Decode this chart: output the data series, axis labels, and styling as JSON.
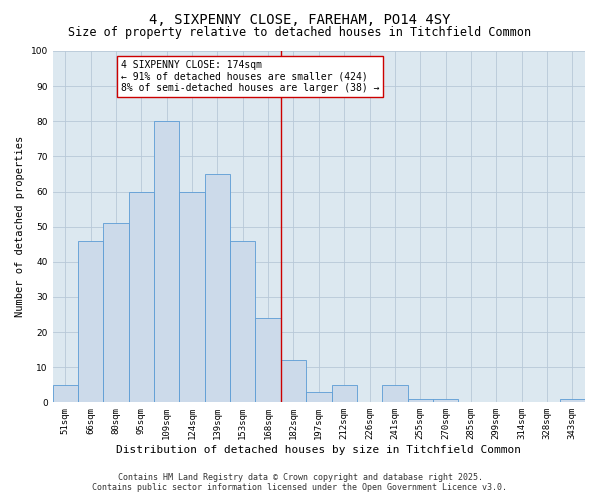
{
  "title": "4, SIXPENNY CLOSE, FAREHAM, PO14 4SY",
  "subtitle": "Size of property relative to detached houses in Titchfield Common",
  "xlabel": "Distribution of detached houses by size in Titchfield Common",
  "ylabel": "Number of detached properties",
  "bar_labels": [
    "51sqm",
    "66sqm",
    "80sqm",
    "95sqm",
    "109sqm",
    "124sqm",
    "139sqm",
    "153sqm",
    "168sqm",
    "182sqm",
    "197sqm",
    "212sqm",
    "226sqm",
    "241sqm",
    "255sqm",
    "270sqm",
    "285sqm",
    "299sqm",
    "314sqm",
    "328sqm",
    "343sqm"
  ],
  "bar_heights": [
    5,
    46,
    51,
    60,
    80,
    60,
    65,
    46,
    24,
    12,
    3,
    5,
    0,
    5,
    1,
    1,
    0,
    0,
    0,
    0,
    1
  ],
  "bar_color": "#ccdaea",
  "bar_edgecolor": "#5b9bd5",
  "vline_x_idx": 8.5,
  "vline_color": "#cc0000",
  "annotation_text": "4 SIXPENNY CLOSE: 174sqm\n← 91% of detached houses are smaller (424)\n8% of semi-detached houses are larger (38) →",
  "annotation_box_edgecolor": "#cc0000",
  "ylim": [
    0,
    100
  ],
  "yticks": [
    0,
    10,
    20,
    30,
    40,
    50,
    60,
    70,
    80,
    90,
    100
  ],
  "grid_color": "#b8c8d8",
  "background_color": "#dce8f0",
  "footer_line1": "Contains HM Land Registry data © Crown copyright and database right 2025.",
  "footer_line2": "Contains public sector information licensed under the Open Government Licence v3.0.",
  "title_fontsize": 10,
  "subtitle_fontsize": 8.5,
  "xlabel_fontsize": 8,
  "ylabel_fontsize": 7.5,
  "tick_fontsize": 6.5,
  "annotation_fontsize": 7,
  "footer_fontsize": 6
}
